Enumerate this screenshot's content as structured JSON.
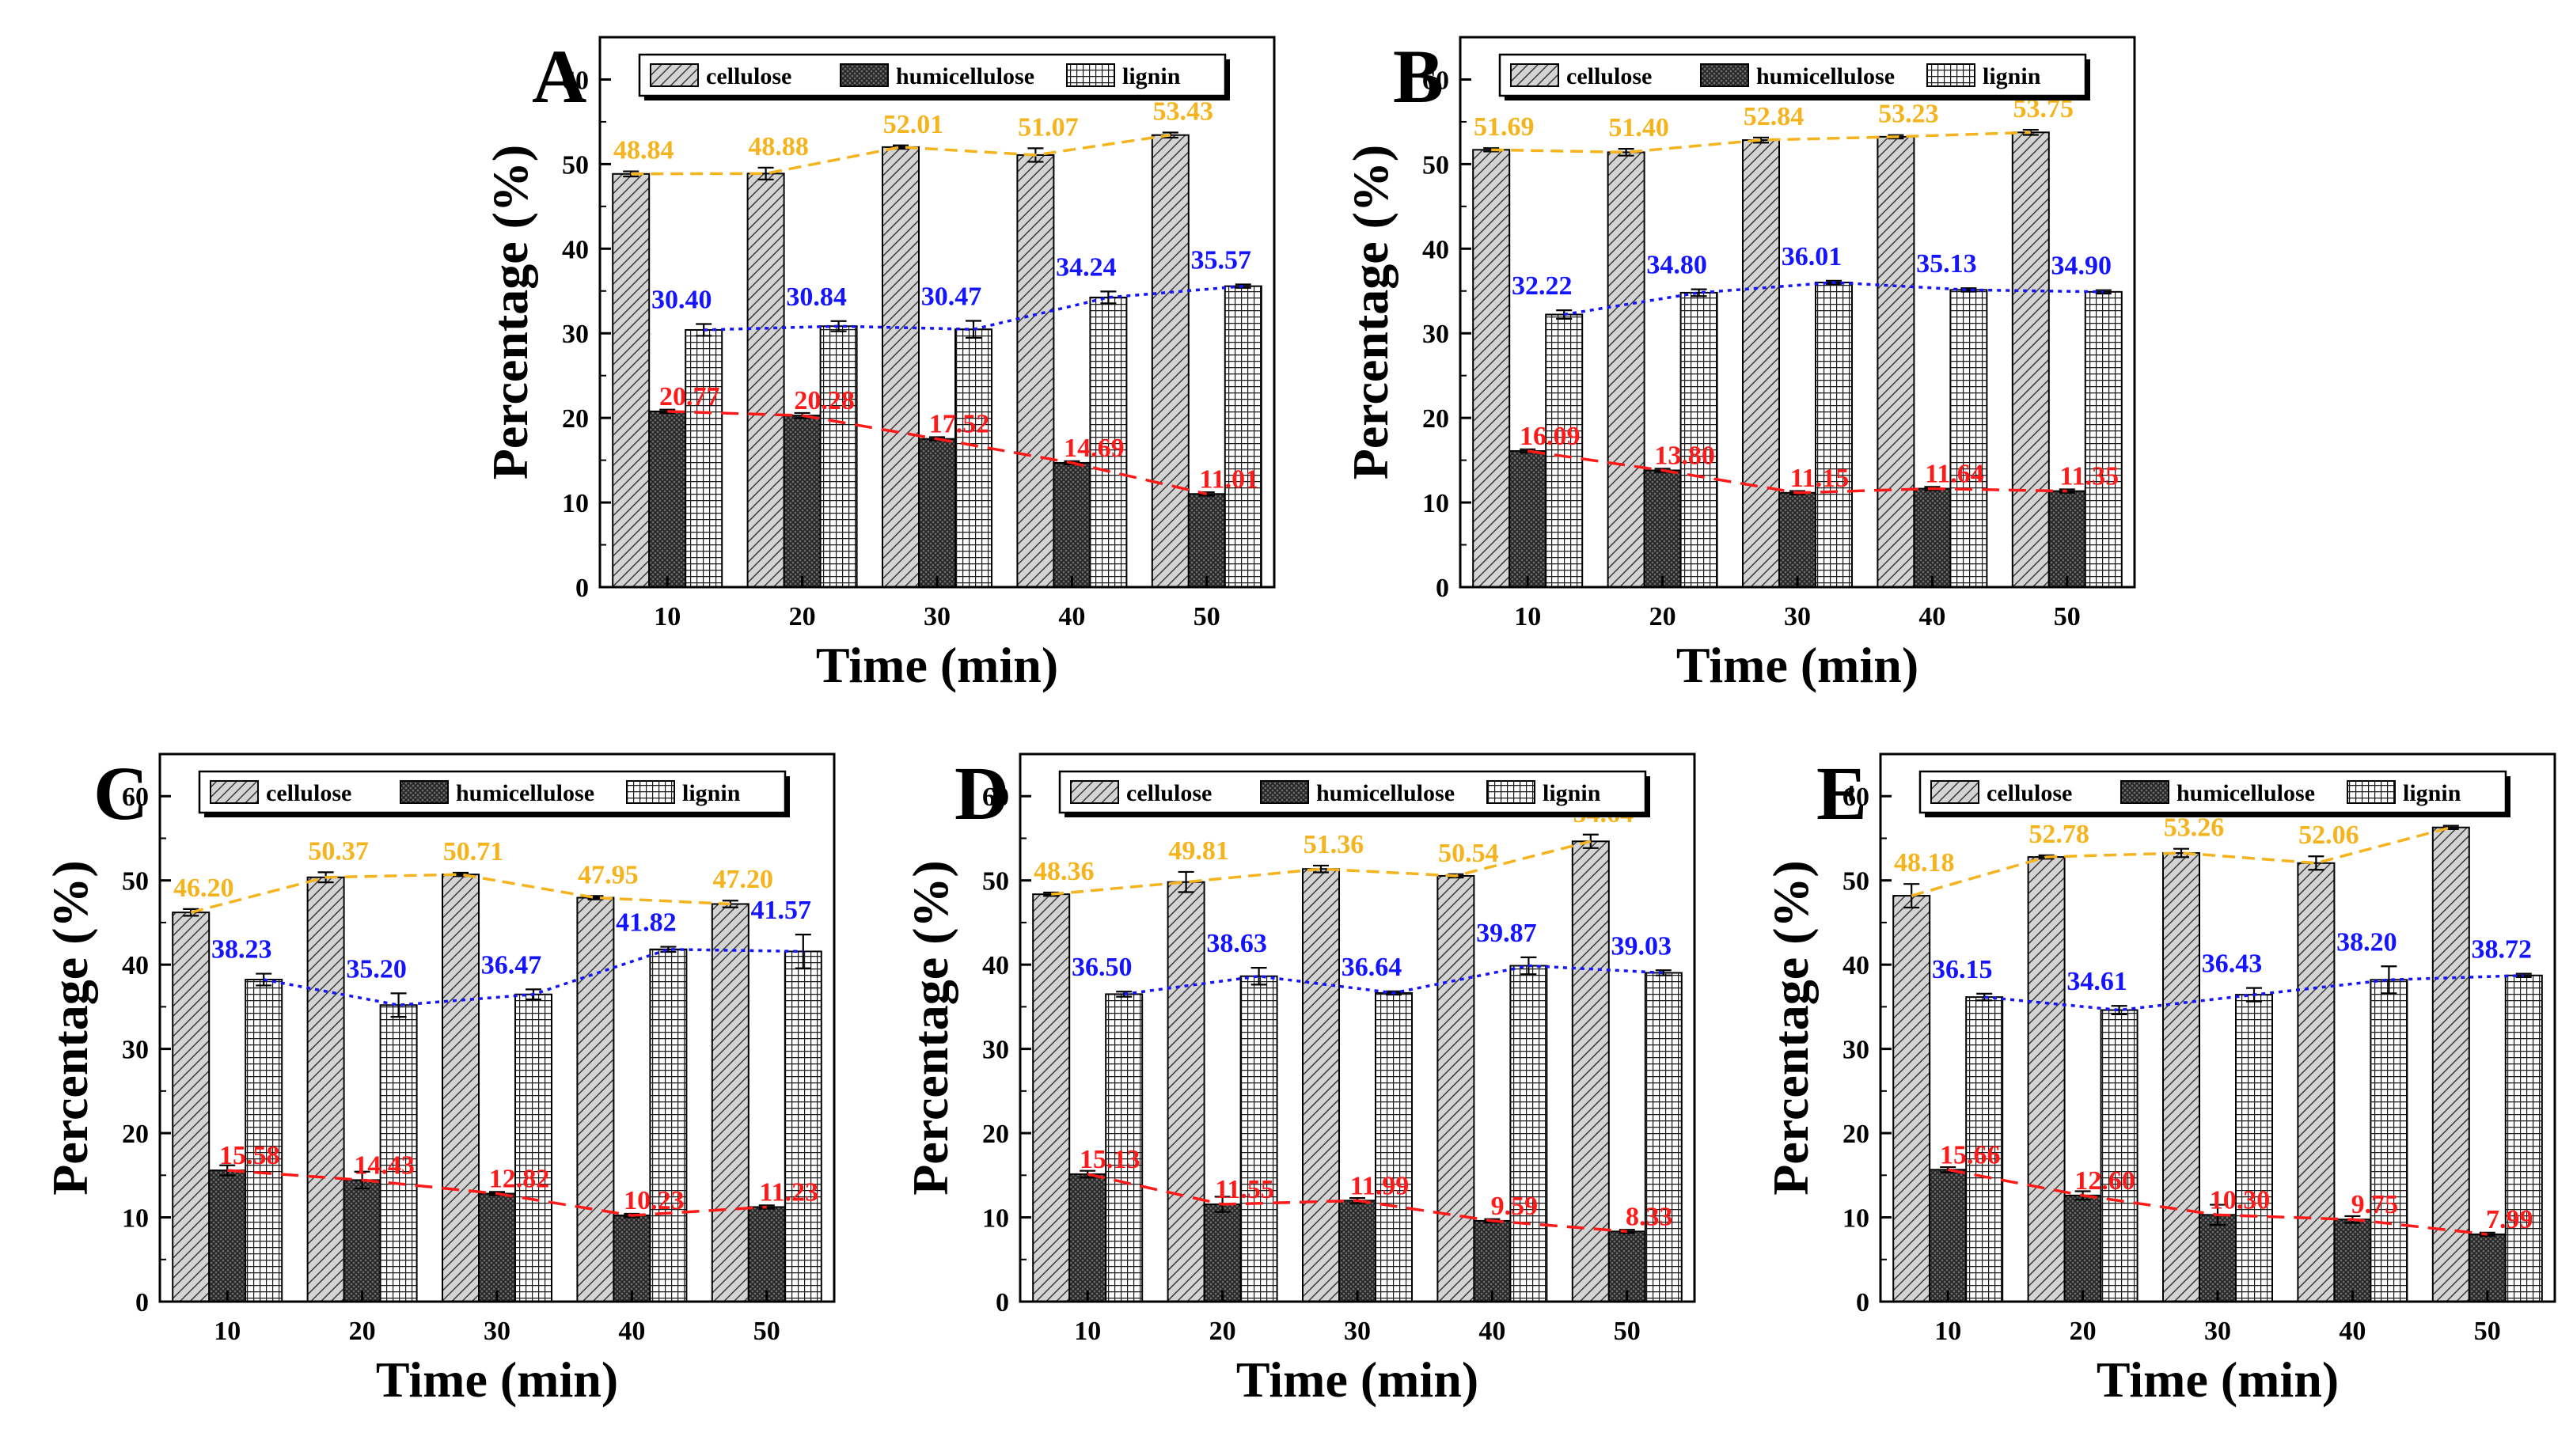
{
  "legend_labels": [
    "cellulose",
    "humicellulose",
    "lignin"
  ],
  "colors": {
    "cellulose_line": "#F5B41E",
    "hemicellulose_line": "#FF1A1A",
    "lignin_line": "#1414FF",
    "axis": "#000000"
  },
  "chart_data": [
    {
      "panel": "A",
      "type": "bar",
      "xlabel": "Time (min)",
      "ylabel": "Percentage (%)",
      "categories": [
        "10",
        "20",
        "30",
        "40",
        "50"
      ],
      "ylim": [
        0,
        65
      ],
      "yticks": [
        0,
        10,
        20,
        30,
        40,
        50,
        60
      ],
      "series": [
        {
          "name": "cellulose",
          "values": [
            48.84,
            48.88,
            52.01,
            51.07,
            53.43
          ],
          "errors": [
            0.3,
            0.7,
            0.2,
            0.8,
            0.3
          ]
        },
        {
          "name": "humicellulose",
          "values": [
            20.77,
            20.28,
            17.52,
            14.69,
            11.01
          ],
          "errors": [
            0.2,
            0.3,
            0.2,
            0.2,
            0.2
          ]
        },
        {
          "name": "lignin",
          "values": [
            30.4,
            30.84,
            30.47,
            34.24,
            35.57
          ],
          "errors": [
            0.7,
            0.6,
            1.0,
            0.7,
            0.2
          ]
        }
      ],
      "labels": {
        "cellulose": [
          "48.84",
          "48.88",
          "52.01",
          "51.07",
          "53.43"
        ],
        "humicellulose": [
          "20.77",
          "20.28",
          "17.52",
          "14.69",
          "11.01"
        ],
        "lignin": [
          "30.40",
          "30.84",
          "30.47",
          "34.24",
          "35.57"
        ]
      }
    },
    {
      "panel": "B",
      "type": "bar",
      "xlabel": "Time (min)",
      "ylabel": "Percentage (%)",
      "categories": [
        "10",
        "20",
        "30",
        "40",
        "50"
      ],
      "ylim": [
        0,
        65
      ],
      "yticks": [
        0,
        10,
        20,
        30,
        40,
        50,
        60
      ],
      "series": [
        {
          "name": "cellulose",
          "values": [
            51.69,
            51.4,
            52.84,
            53.23,
            53.75
          ],
          "errors": [
            0.2,
            0.4,
            0.3,
            0.2,
            0.3
          ]
        },
        {
          "name": "humicellulose",
          "values": [
            16.09,
            13.8,
            11.15,
            11.64,
            11.35
          ],
          "errors": [
            0.2,
            0.2,
            0.2,
            0.2,
            0.2
          ]
        },
        {
          "name": "lignin",
          "values": [
            32.22,
            34.8,
            36.01,
            35.13,
            34.9
          ],
          "errors": [
            0.5,
            0.4,
            0.2,
            0.2,
            0.2
          ]
        }
      ],
      "labels": {
        "cellulose": [
          "51.69",
          "51.40",
          "52.84",
          "53.23",
          "53.75"
        ],
        "humicellulose": [
          "16.09",
          "13.80",
          "11.15",
          "11.64",
          "11.35"
        ],
        "lignin": [
          "32.22",
          "34.80",
          "36.01",
          "35.13",
          "34.90"
        ]
      }
    },
    {
      "panel": "C",
      "type": "bar",
      "xlabel": "Time (min)",
      "ylabel": "Percentage (%)",
      "categories": [
        "10",
        "20",
        "30",
        "40",
        "50"
      ],
      "ylim": [
        0,
        65
      ],
      "yticks": [
        0,
        10,
        20,
        30,
        40,
        50,
        60
      ],
      "series": [
        {
          "name": "cellulose",
          "values": [
            46.2,
            50.37,
            50.71,
            47.95,
            47.2
          ],
          "errors": [
            0.4,
            0.6,
            0.2,
            0.2,
            0.4
          ]
        },
        {
          "name": "humicellulose",
          "values": [
            15.58,
            14.43,
            12.82,
            10.23,
            11.23
          ],
          "errors": [
            0.6,
            1.0,
            0.2,
            0.2,
            0.2
          ]
        },
        {
          "name": "lignin",
          "values": [
            38.23,
            35.2,
            36.47,
            41.82,
            41.57
          ],
          "errors": [
            0.7,
            1.4,
            0.6,
            0.3,
            2.0
          ]
        }
      ],
      "labels": {
        "cellulose": [
          "46.20",
          "50.37",
          "50.71",
          "47.95",
          "47.20"
        ],
        "humicellulose": [
          "15.58",
          "14.43",
          "12.82",
          "10.23",
          "11.23"
        ],
        "lignin": [
          "38.23",
          "35.20",
          "36.47",
          "41.82",
          "41.57"
        ]
      }
    },
    {
      "panel": "D",
      "type": "bar",
      "xlabel": "Time (min)",
      "ylabel": "Percentage (%)",
      "categories": [
        "10",
        "20",
        "30",
        "40",
        "50"
      ],
      "ylim": [
        0,
        65
      ],
      "yticks": [
        0,
        10,
        20,
        30,
        40,
        50,
        60
      ],
      "series": [
        {
          "name": "cellulose",
          "values": [
            48.36,
            49.81,
            51.36,
            50.54,
            54.64
          ],
          "errors": [
            0.2,
            1.2,
            0.4,
            0.2,
            0.8
          ]
        },
        {
          "name": "humicellulose",
          "values": [
            15.13,
            11.55,
            11.99,
            9.59,
            8.33
          ],
          "errors": [
            0.4,
            0.9,
            0.3,
            0.2,
            0.2
          ]
        },
        {
          "name": "lignin",
          "values": [
            36.5,
            38.63,
            36.64,
            39.87,
            39.03
          ],
          "errors": [
            0.3,
            1.0,
            0.2,
            1.0,
            0.3
          ]
        }
      ],
      "labels": {
        "cellulose": [
          "48.36",
          "49.81",
          "51.36",
          "50.54",
          "54.64"
        ],
        "humicellulose": [
          "15.13",
          "11.55",
          "11.99",
          "9.59",
          "8.33"
        ],
        "lignin": [
          "36.50",
          "38.63",
          "36.64",
          "39.87",
          "39.03"
        ]
      }
    },
    {
      "panel": "E",
      "type": "bar",
      "xlabel": "Time (min)",
      "ylabel": "Percentage (%)",
      "categories": [
        "10",
        "20",
        "30",
        "40",
        "50"
      ],
      "ylim": [
        0,
        65
      ],
      "yticks": [
        0,
        10,
        20,
        30,
        40,
        50,
        60
      ],
      "series": [
        {
          "name": "cellulose",
          "values": [
            48.18,
            52.78,
            53.26,
            52.06,
            56.29
          ],
          "errors": [
            1.4,
            0.2,
            0.5,
            0.8,
            0.2
          ]
        },
        {
          "name": "humicellulose",
          "values": [
            15.66,
            12.6,
            10.3,
            9.75,
            7.99
          ],
          "errors": [
            0.3,
            0.5,
            1.2,
            0.4,
            0.2
          ]
        },
        {
          "name": "lignin",
          "values": [
            36.15,
            34.61,
            36.43,
            38.2,
            38.72
          ],
          "errors": [
            0.4,
            0.5,
            0.8,
            1.6,
            0.2
          ]
        }
      ],
      "labels": {
        "cellulose": [
          "48.18",
          "52.78",
          "53.26",
          "52.06",
          "56.29"
        ],
        "humicellulose": [
          "15.66",
          "12.60",
          "10.30",
          "9.75",
          "7.99"
        ],
        "lignin": [
          "36.15",
          "34.61",
          "36.43",
          "38.20",
          "38.72"
        ]
      }
    }
  ]
}
